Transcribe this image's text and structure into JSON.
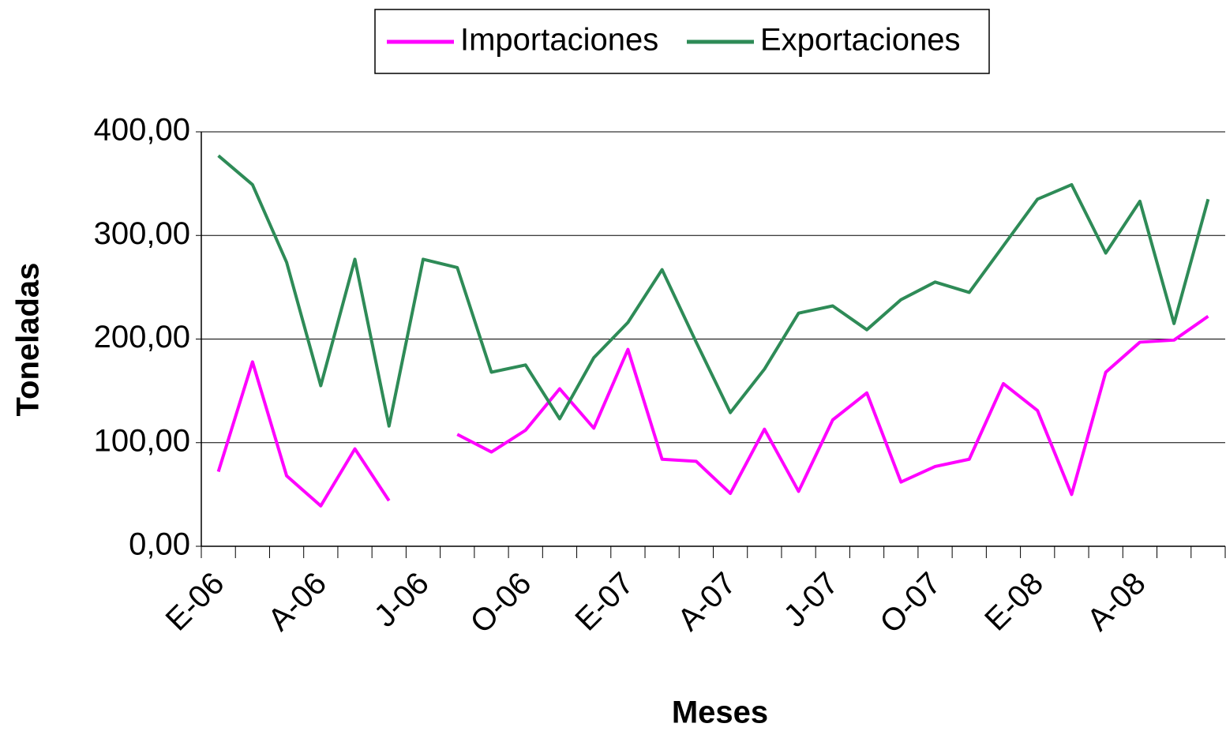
{
  "chart_data": {
    "type": "line",
    "x_label": "Meses",
    "y_label": "Toneladas",
    "categories": [
      "E-06",
      null,
      null,
      "A-06",
      null,
      null,
      "J-06",
      null,
      null,
      "O-06",
      null,
      null,
      "E-07",
      null,
      null,
      "A-07",
      null,
      null,
      "J-07",
      null,
      null,
      "O-07",
      null,
      null,
      "E-08",
      null,
      null,
      "A-08",
      null,
      null
    ],
    "series": [
      {
        "name": "Importaciones",
        "color": "#ff00ff",
        "values": [
          72,
          178,
          68,
          39,
          94,
          44,
          null,
          108,
          91,
          112,
          152,
          114,
          190,
          84,
          82,
          51,
          113,
          53,
          122,
          148,
          62,
          77,
          84,
          157,
          131,
          50,
          168,
          197,
          199,
          222
        ]
      },
      {
        "name": "Exportaciones",
        "color": "#2e8b57",
        "values": [
          377,
          349,
          274,
          155,
          277,
          116,
          277,
          269,
          168,
          175,
          123,
          182,
          216,
          267,
          197,
          129,
          171,
          225,
          232,
          209,
          238,
          255,
          245,
          290,
          335,
          349,
          283,
          333,
          215,
          335
        ]
      }
    ],
    "ylim": [
      0,
      400
    ],
    "yticks": [
      {
        "value": 0,
        "label": "0,00"
      },
      {
        "value": 100,
        "label": "100,00"
      },
      {
        "value": 200,
        "label": "200,00"
      },
      {
        "value": 300,
        "label": "300,00"
      },
      {
        "value": 400,
        "label": "400,00"
      }
    ],
    "grid": true,
    "legend": "top"
  }
}
